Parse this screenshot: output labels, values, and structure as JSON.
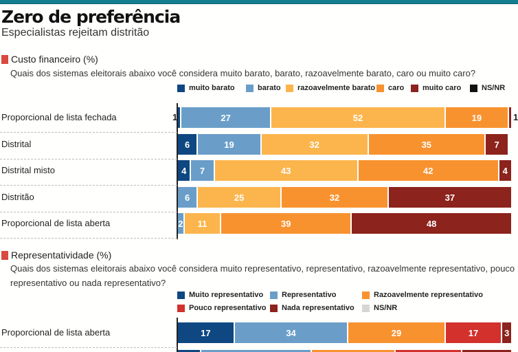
{
  "header": {
    "title": "Zero de preferência",
    "subtitle": "Especialistas rejeitam distritão"
  },
  "colors": {
    "topbar": "#157f92",
    "section_marker": "#d8493f"
  },
  "chart_data": [
    {
      "type": "bar",
      "orientation": "horizontal-stacked",
      "title": "Custo financeiro (%)",
      "question": "Quais dos sistemas eleitorais abaixo você considera muito barato, barato, razoavelmente barato, caro ou muito caro?",
      "legend": [
        {
          "name": "muito barato",
          "color": "#0e4781"
        },
        {
          "name": "barato",
          "color": "#6a9ec9"
        },
        {
          "name": "razoavelmente barato",
          "color": "#fcb54d"
        },
        {
          "name": "caro",
          "color": "#f8922f"
        },
        {
          "name": "muito caro",
          "color": "#8c231c"
        },
        {
          "name": "NS/NR",
          "color": "#111111"
        }
      ],
      "categories": [
        "Proporcional de lista fechada",
        "Distrital",
        "Distrital misto",
        "Distritão",
        "Proporcional de lista aberta"
      ],
      "series": [
        {
          "name": "muito barato",
          "values": [
            1,
            6,
            4,
            0,
            0
          ]
        },
        {
          "name": "barato",
          "values": [
            27,
            19,
            7,
            6,
            2
          ]
        },
        {
          "name": "razoavelmente barato",
          "values": [
            52,
            32,
            43,
            25,
            11
          ]
        },
        {
          "name": "caro",
          "values": [
            19,
            35,
            42,
            32,
            39
          ]
        },
        {
          "name": "muito caro",
          "values": [
            1,
            7,
            4,
            37,
            48
          ]
        },
        {
          "name": "NS/NR",
          "values": [
            0,
            0,
            0,
            0,
            0
          ]
        }
      ],
      "xlim": [
        0,
        100
      ]
    },
    {
      "type": "bar",
      "orientation": "horizontal-stacked",
      "title": "Representatividade (%)",
      "question": "Quais dos sistemas eleitorais abaixo você considera muito representativo, representativo, razoavelmente representativo, pouco representativo ou nada representativo?",
      "legend": [
        {
          "name": "Muito representativo",
          "color": "#0e4781"
        },
        {
          "name": "Representativo",
          "color": "#6a9ec9"
        },
        {
          "name": "Razoavelmente representativo",
          "color": "#f8922f"
        },
        {
          "name": "Pouco representativo",
          "color": "#d2312c"
        },
        {
          "name": "Nada representativo",
          "color": "#8c231c"
        },
        {
          "name": "NS/NR",
          "color": "#d6d6d6"
        }
      ],
      "categories": [
        "Proporcional de lista aberta"
      ],
      "series": [
        {
          "name": "Muito representativo",
          "values": [
            17
          ]
        },
        {
          "name": "Representativo",
          "values": [
            34
          ]
        },
        {
          "name": "Razoavelmente representativo",
          "values": [
            29
          ]
        },
        {
          "name": "Pouco representativo",
          "values": [
            17
          ]
        },
        {
          "name": "Nada representativo",
          "values": [
            3
          ]
        },
        {
          "name": "NS/NR",
          "values": [
            0
          ]
        }
      ],
      "partial_next_row": {
        "Muito representativo": 7,
        "Representativo": 33,
        "Razoavelmente representativo": 25,
        "Pouco representativo": 20,
        "Nada representativo": 15
      },
      "xlim": [
        0,
        100
      ]
    }
  ]
}
